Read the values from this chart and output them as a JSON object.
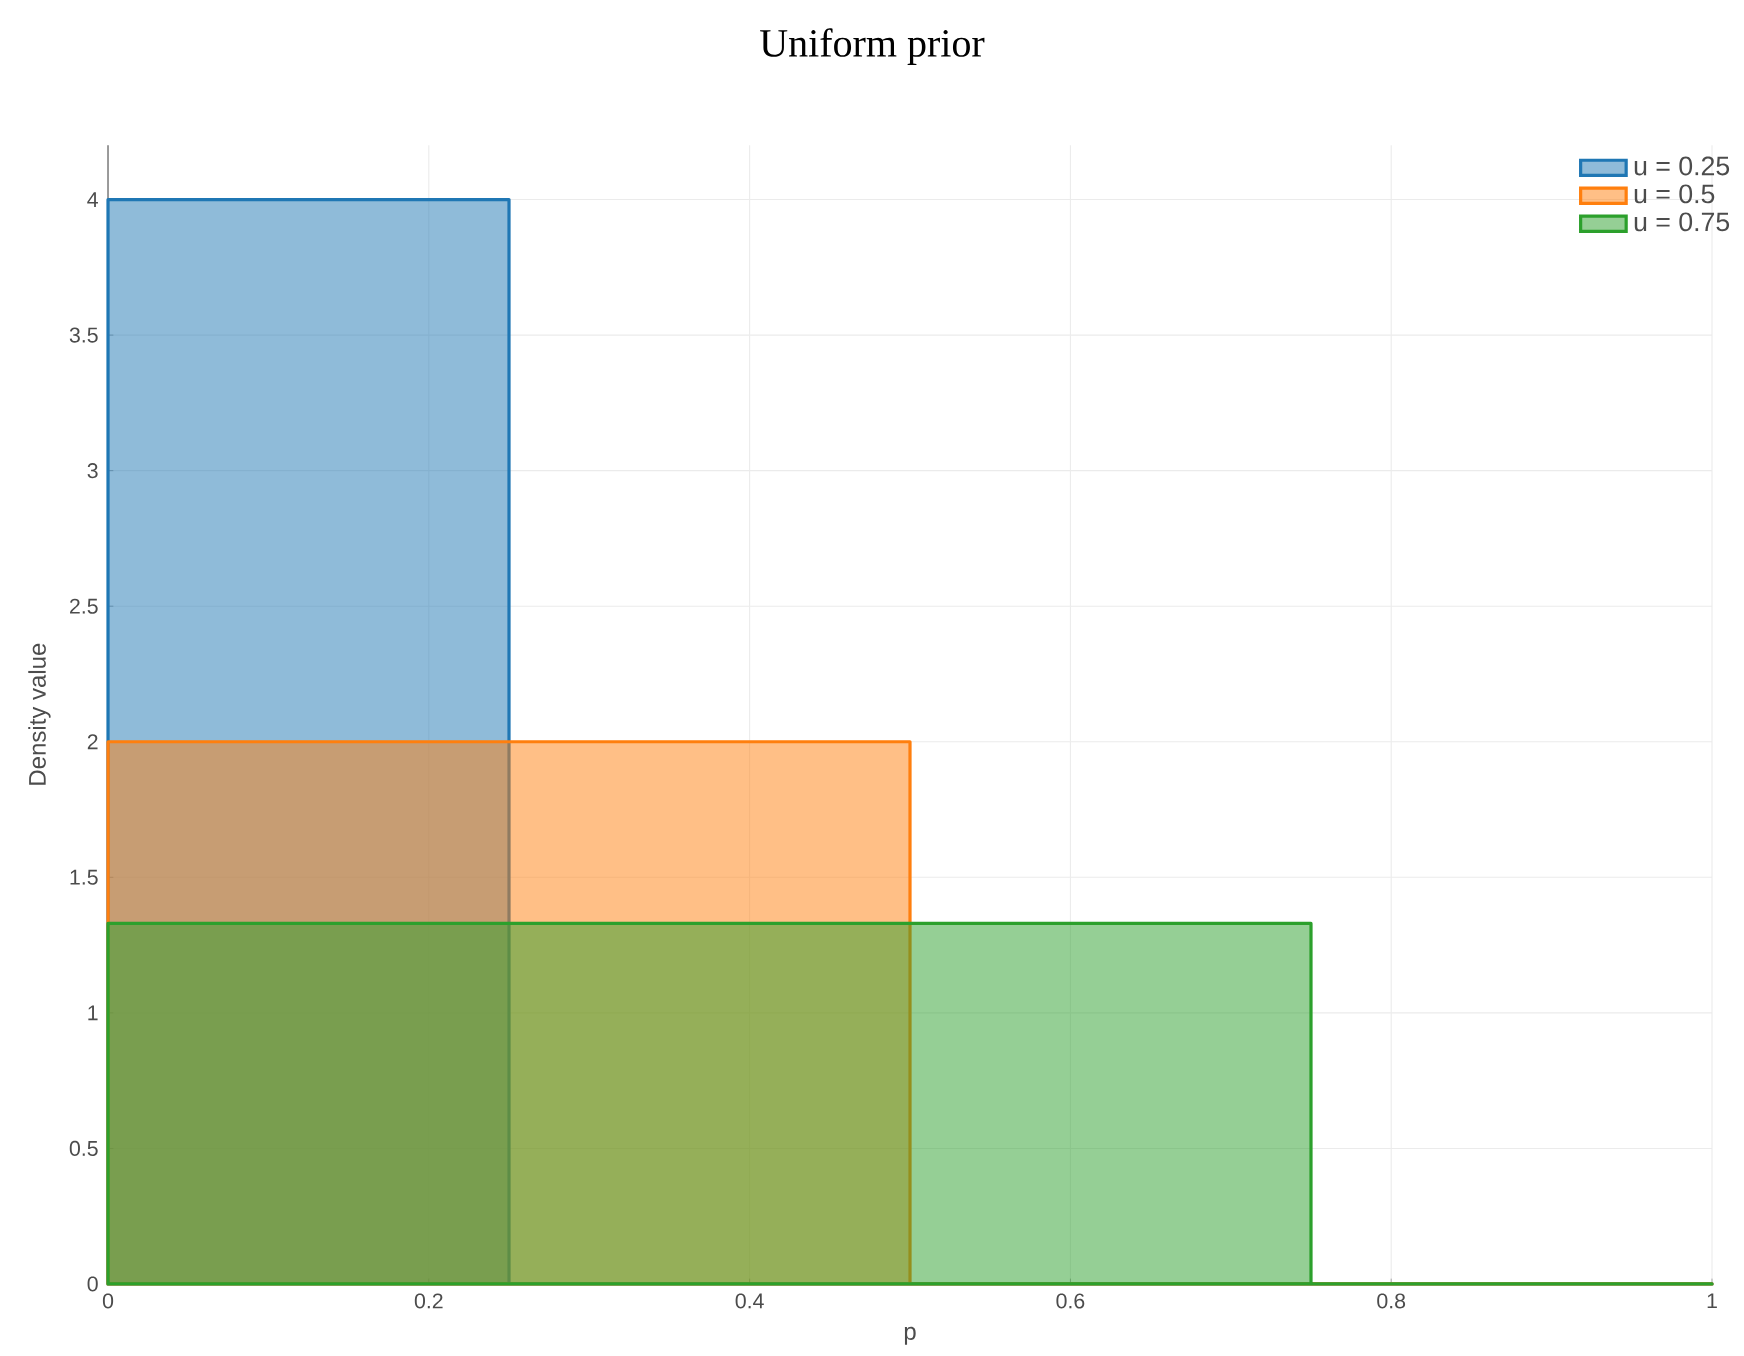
{
  "chart_data": {
    "type": "area",
    "title": "Uniform prior",
    "xlabel": "p",
    "ylabel": "Density value",
    "xlim": [
      0,
      1
    ],
    "ylim": [
      0,
      4.2
    ],
    "xticks": [
      0,
      0.2,
      0.4,
      0.6,
      0.8,
      1
    ],
    "yticks": [
      0,
      0.5,
      1,
      1.5,
      2,
      2.5,
      3,
      3.5,
      4
    ],
    "grid": true,
    "legend": "top right",
    "series": [
      {
        "name": "u = 0.25",
        "color": "#1f77b4",
        "x": [
          0,
          0.25,
          0.25,
          1
        ],
        "values": [
          4,
          4,
          0,
          0
        ]
      },
      {
        "name": "u = 0.5",
        "color": "#ff7f0e",
        "x": [
          0,
          0.5,
          0.5,
          1
        ],
        "values": [
          2,
          2,
          0,
          0
        ]
      },
      {
        "name": "u = 0.75",
        "color": "#2ca02c",
        "x": [
          0,
          0.75,
          0.75,
          1
        ],
        "values": [
          1.33,
          1.33,
          0,
          0
        ]
      }
    ]
  }
}
